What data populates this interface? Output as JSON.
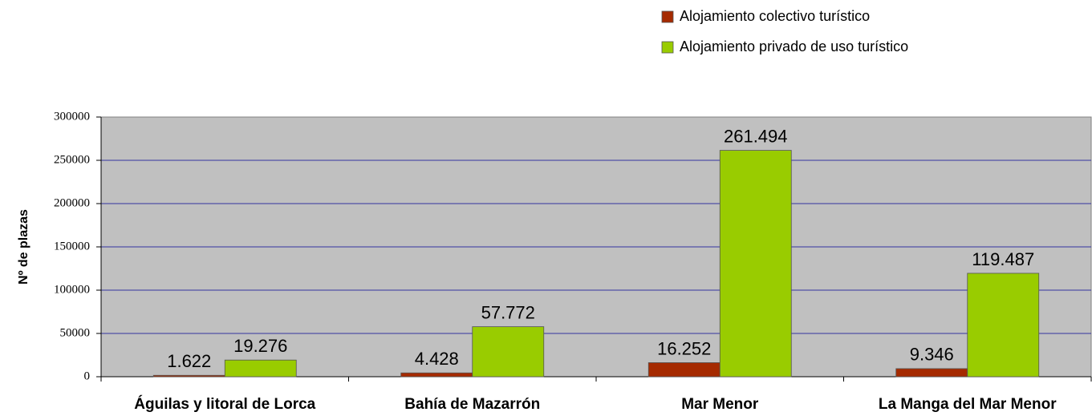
{
  "chart_data": {
    "type": "bar",
    "y_label": "Nº de plazas",
    "categories": [
      "Águilas y litoral de Lorca",
      "Bahía de Mazarrón",
      "Mar Menor",
      "La Manga del Mar Menor"
    ],
    "series": [
      {
        "name": "Alojamiento colectivo turístico",
        "color": "#a52a00",
        "values": [
          1622,
          4428,
          16252,
          9346
        ],
        "value_labels": [
          "1.622",
          "4.428",
          "16.252",
          "9.346"
        ]
      },
      {
        "name": "Alojamiento privado de uso turístico",
        "color": "#99cc00",
        "values": [
          19276,
          57772,
          261494,
          119487
        ],
        "value_labels": [
          "19.276",
          "57.772",
          "261.494",
          "119.487"
        ]
      }
    ],
    "ylim": [
      0,
      300000
    ],
    "yticks": [
      0,
      50000,
      100000,
      150000,
      200000,
      250000,
      300000
    ],
    "grid": true,
    "legend": "top-right",
    "plot_background": "#c0c0c0"
  }
}
